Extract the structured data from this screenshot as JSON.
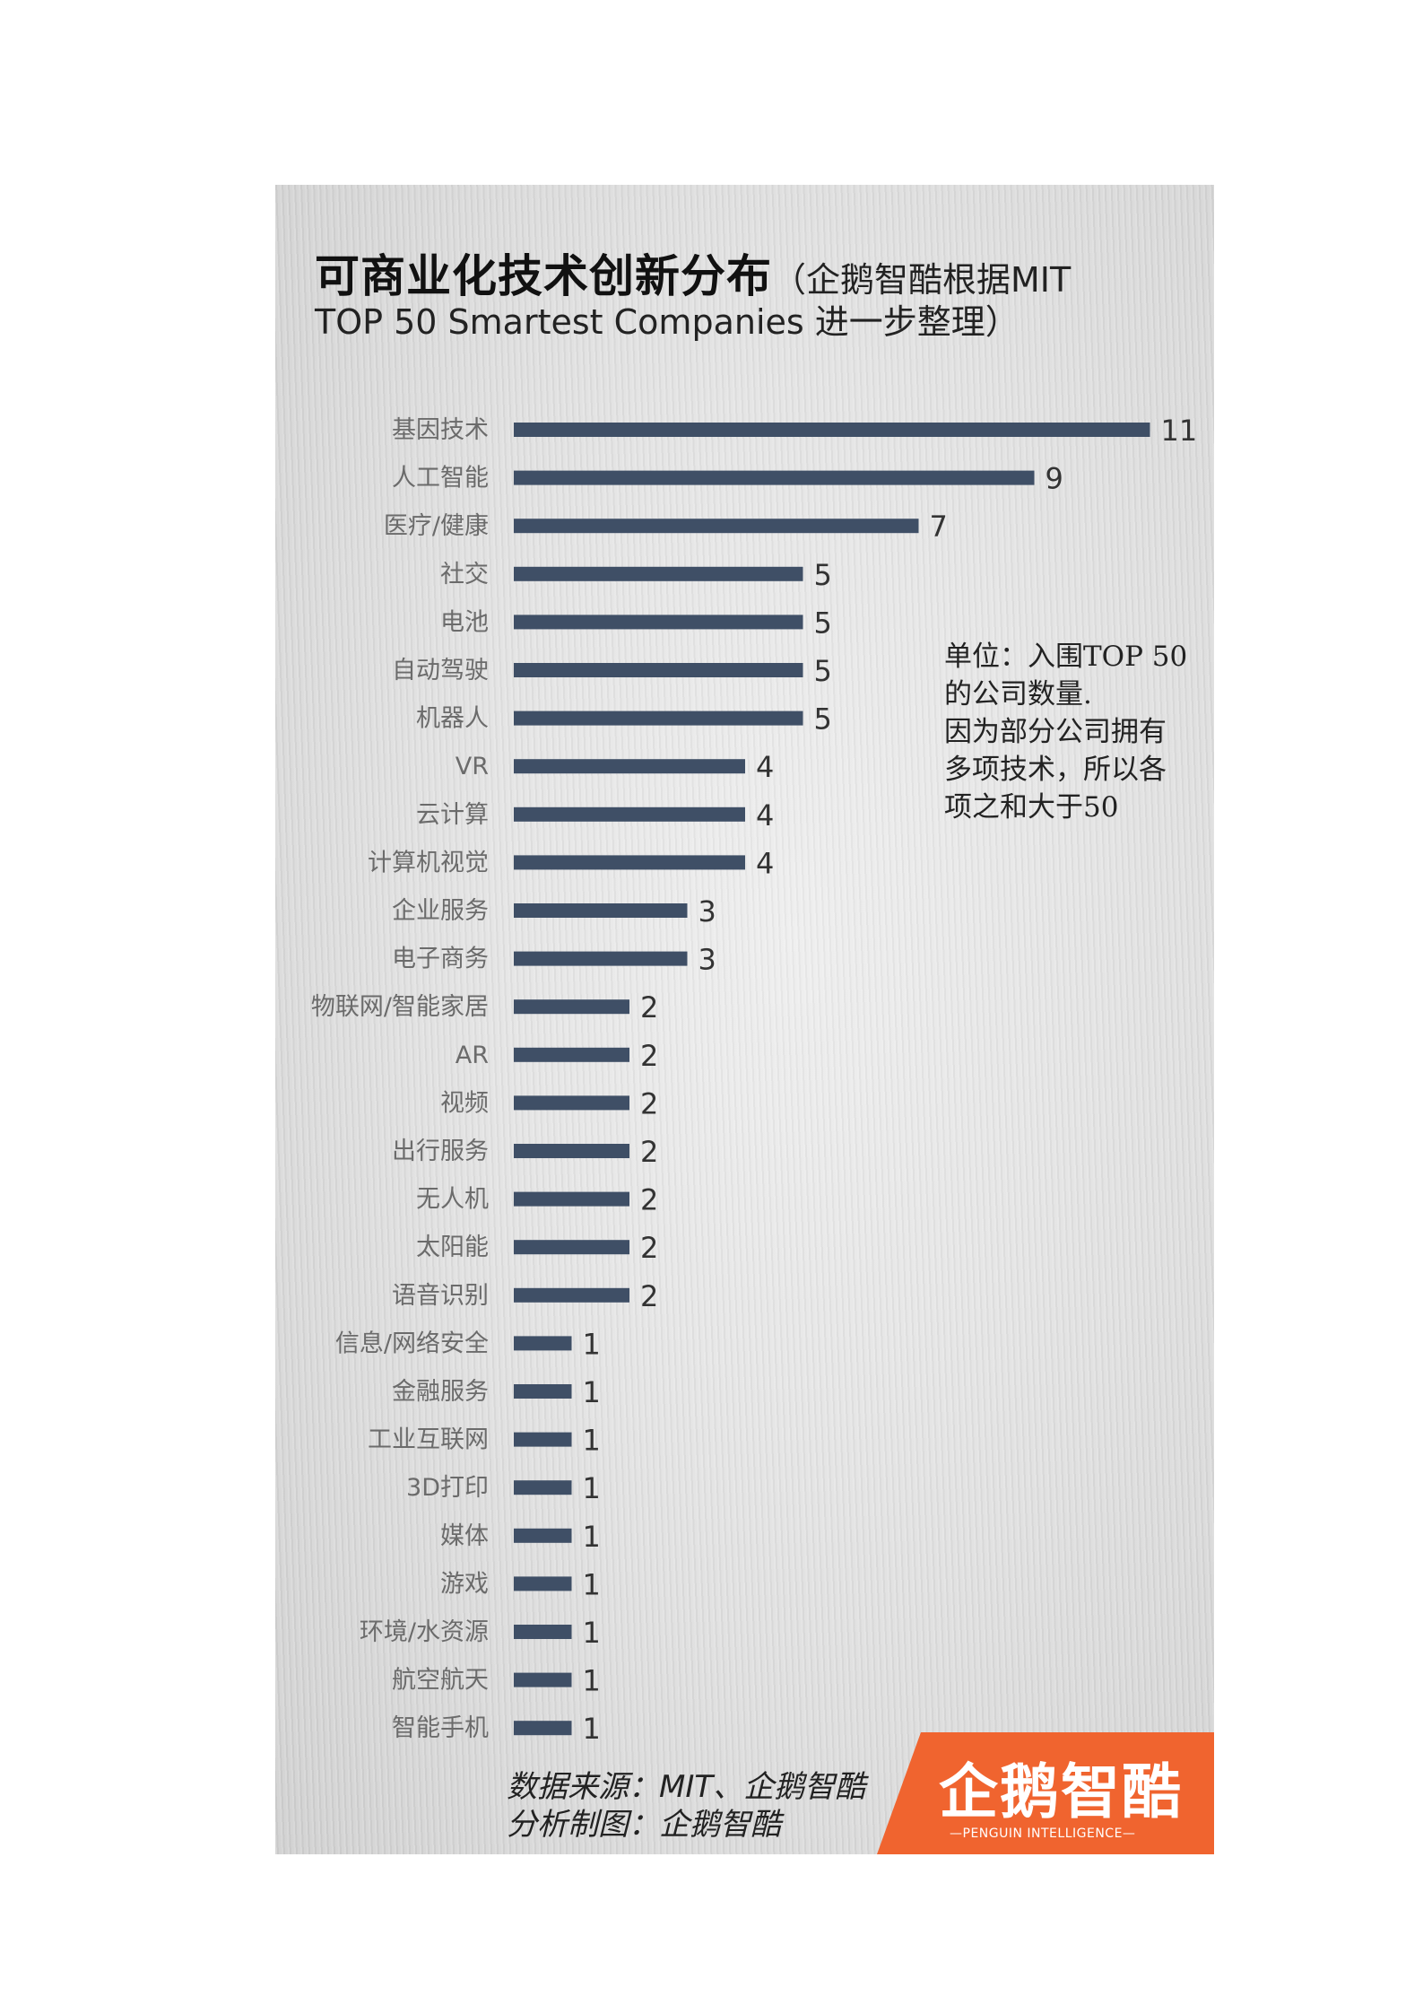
{
  "title": {
    "main": "可商业化技术创新分布",
    "sub_line1": "（企鹅智酷根据MIT",
    "sub_line2": "TOP 50 Smartest Companies 进一步整理）"
  },
  "note": [
    "单位：入围TOP 50",
    "的公司数量.",
    "因为部分公司拥有",
    "多项技术，所以各",
    "项之和大于50"
  ],
  "source": {
    "line1": "数据来源：MIT、企鹅智酷",
    "line2": "分析制图：企鹅智酷"
  },
  "logo": {
    "text": "企鹅智酷",
    "subtitle": "—PENGUIN INTELLIGENCE—",
    "icon": "penguin-icon"
  },
  "colors": {
    "bar": "#3f4f66",
    "logo_bg": "#f0642f",
    "background": "#e2e2e2"
  },
  "chart_data": {
    "type": "bar",
    "orientation": "horizontal",
    "title": "可商业化技术创新分布",
    "categories": [
      "基因技术",
      "人工智能",
      "医疗/健康",
      "社交",
      "电池",
      "自动驾驶",
      "机器人",
      "VR",
      "云计算",
      "计算机视觉",
      "企业服务",
      "电子商务",
      "物联网/智能家居",
      "AR",
      "视频",
      "出行服务",
      "无人机",
      "太阳能",
      "语音识别",
      "信息/网络安全",
      "金融服务",
      "工业互联网",
      "3D打印",
      "媒体",
      "游戏",
      "环境/水资源",
      "航空航天",
      "智能手机"
    ],
    "values": [
      11,
      9,
      7,
      5,
      5,
      5,
      5,
      4,
      4,
      4,
      3,
      3,
      2,
      2,
      2,
      2,
      2,
      2,
      2,
      1,
      1,
      1,
      1,
      1,
      1,
      1,
      1,
      1
    ],
    "data_labels": true,
    "grid": false,
    "xlim": [
      0,
      11
    ]
  }
}
